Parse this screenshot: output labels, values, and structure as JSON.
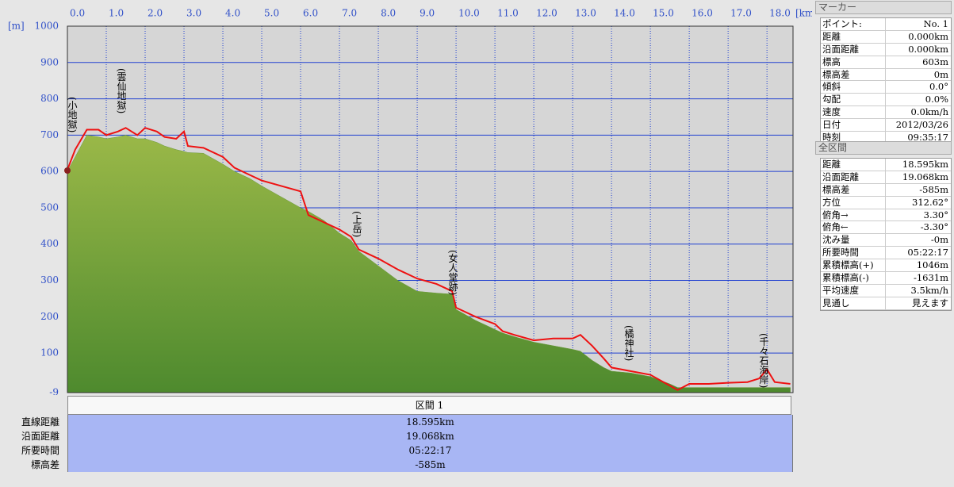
{
  "chart_data": {
    "type": "area-line",
    "x_unit": "[km]",
    "y_unit": "[m]",
    "xlim": [
      0,
      18.67
    ],
    "ylim": [
      -9,
      1000
    ],
    "xticks": [
      {
        "value": 0,
        "label": "0.0"
      },
      {
        "value": 1,
        "label": "1.0"
      },
      {
        "value": 2,
        "label": "2.0"
      },
      {
        "value": 3,
        "label": "3.0"
      },
      {
        "value": 4,
        "label": "4.0"
      },
      {
        "value": 5,
        "label": "5.0"
      },
      {
        "value": 6,
        "label": "6.0"
      },
      {
        "value": 7,
        "label": "7.0"
      },
      {
        "value": 8,
        "label": "8.0"
      },
      {
        "value": 9,
        "label": "9.0"
      },
      {
        "value": 10,
        "label": "10.0"
      },
      {
        "value": 11,
        "label": "11.0"
      },
      {
        "value": 12,
        "label": "12.0"
      },
      {
        "value": 13,
        "label": "13.0"
      },
      {
        "value": 14,
        "label": "14.0"
      },
      {
        "value": 15,
        "label": "15.0"
      },
      {
        "value": 16,
        "label": "16.0"
      },
      {
        "value": 17,
        "label": "17.0"
      },
      {
        "value": 18,
        "label": "18.0"
      }
    ],
    "yticks": [
      -9,
      100,
      200,
      300,
      400,
      500,
      600,
      700,
      800,
      900,
      1000
    ],
    "grid": true,
    "x": [
      0,
      0.2,
      0.5,
      0.8,
      1.0,
      1.3,
      1.5,
      1.8,
      2.0,
      2.3,
      2.5,
      2.8,
      3.0,
      3.1,
      3.5,
      4.0,
      4.3,
      4.7,
      5.0,
      5.5,
      6.0,
      6.2,
      6.6,
      7.0,
      7.3,
      7.5,
      8.0,
      8.5,
      9.0,
      9.5,
      9.9,
      10.0,
      10.5,
      11.0,
      11.2,
      11.5,
      12.0,
      12.5,
      13.0,
      13.2,
      13.5,
      13.8,
      14.0,
      14.5,
      15.0,
      15.5,
      15.7,
      16.0,
      16.5,
      17.0,
      17.5,
      17.8,
      18.0,
      18.2,
      18.6
    ],
    "series": [
      {
        "kind": "area",
        "color": "#6a9a3a",
        "values": [
          600,
          640,
          700,
          695,
          690,
          695,
          700,
          690,
          690,
          680,
          670,
          660,
          655,
          652,
          650,
          620,
          600,
          580,
          560,
          530,
          500,
          490,
          465,
          430,
          410,
          380,
          340,
          300,
          270,
          265,
          262,
          220,
          190,
          165,
          155,
          145,
          130,
          120,
          110,
          105,
          80,
          60,
          50,
          45,
          35,
          15,
          5,
          5,
          5,
          5,
          5,
          5,
          5,
          5,
          5
        ]
      },
      {
        "kind": "line",
        "color": "#ee1111",
        "values": [
          605,
          660,
          715,
          715,
          700,
          710,
          720,
          700,
          720,
          710,
          695,
          690,
          710,
          670,
          665,
          640,
          610,
          590,
          575,
          560,
          545,
          480,
          460,
          440,
          420,
          385,
          360,
          330,
          305,
          290,
          270,
          225,
          200,
          180,
          160,
          150,
          135,
          140,
          140,
          150,
          120,
          85,
          60,
          50,
          40,
          10,
          -2,
          15,
          15,
          18,
          20,
          30,
          55,
          20,
          15
        ]
      }
    ],
    "annotations": [
      "(小地獄)",
      "(雲仙地獄)",
      "(上岳)",
      "(女人堂跡)",
      "(橘神社)",
      "(千々石海岸)"
    ]
  },
  "section": {
    "header": "区間 1",
    "rows": [
      [
        "直線距離",
        "18.595km"
      ],
      [
        "沿面距離",
        "19.068km"
      ],
      [
        "所要時間",
        "05:22:17"
      ],
      [
        "標高差",
        "-585m"
      ]
    ]
  },
  "marker": {
    "title": "マーカー",
    "rows": [
      [
        "ポイント:",
        "No. 1"
      ],
      [
        "距離",
        "0.000km"
      ],
      [
        "沿面距離",
        "0.000km"
      ],
      [
        "標高",
        "603m"
      ],
      [
        "標高差",
        "0m"
      ],
      [
        "傾斜",
        "0.0°"
      ],
      [
        "勾配",
        "0.0%"
      ],
      [
        "速度",
        "0.0km/h"
      ],
      [
        "日付",
        "2012/03/26"
      ],
      [
        "時刻",
        "09:35:17"
      ]
    ]
  },
  "total": {
    "title": "全区間",
    "rows": [
      [
        "距離",
        "18.595km"
      ],
      [
        "沿面距離",
        "19.068km"
      ],
      [
        "標高差",
        "-585m"
      ],
      [
        "方位",
        "312.62°"
      ],
      [
        "俯角→",
        "3.30°"
      ],
      [
        "俯角←",
        "-3.30°"
      ],
      [
        "沈み量",
        "-0m"
      ],
      [
        "所要時間",
        "05:22:17"
      ],
      [
        "累積標高(+)",
        "1046m"
      ],
      [
        "累積標高(-)",
        "-1631m"
      ],
      [
        "平均速度",
        "3.5km/h"
      ],
      [
        "見通し",
        "見えます"
      ]
    ]
  }
}
